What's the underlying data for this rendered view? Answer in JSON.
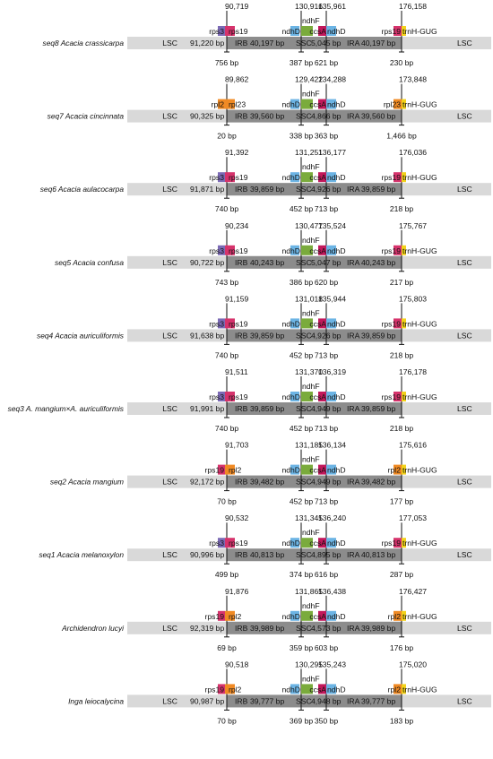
{
  "region_labels": {
    "lsc": "LSC",
    "irb": "IRB",
    "ssc": "SSC",
    "ira": "IRA"
  },
  "colors": {
    "track": "#d9d9d9",
    "ir_block": "#8c8c8c",
    "rps3": "#7b6ab5",
    "rps19": "#d6336c",
    "rpl2": "#f08a24",
    "rpl22": "#f08a24",
    "ndhD": "#6cb4e4",
    "ndhF": "#7aab3c",
    "ccsA": "#c2185b",
    "trnH": "#f2d21b"
  },
  "rows": [
    {
      "species": "seq8 Acacia crassicarpa",
      "jlb": "90,719",
      "jsb": "130,916",
      "jsa": "135,961",
      "jla": "176,158",
      "lsc_len": "91,220 bp",
      "irb_len": "40,197 bp",
      "ssc_len": "5,045 bp",
      "ira_len": "40,197 bp",
      "genes": {
        "g1a": "rps3",
        "g1b": "rps19",
        "g2a": "ndhD",
        "g2b": "ndhF",
        "g3a": "ccsA",
        "g3b": "ndhD",
        "g4a": "rps19",
        "g4b": "trnH-GUG"
      },
      "dist": {
        "d1": "756 bp",
        "d2": "387 bp",
        "d3": "621 bp",
        "d4": "230 bp"
      }
    },
    {
      "species": "seq7 Acacia cincinnata",
      "jlb": "89,862",
      "jsb": "129,422",
      "jsa": "134,288",
      "jla": "173,848",
      "lsc_len": "90,325 bp",
      "irb_len": "39,560 bp",
      "ssc_len": "4,866 bp",
      "ira_len": "39,560 bp",
      "genes": {
        "g1a": "rpl2",
        "g1b": "rpl23",
        "g2a": "ndhD",
        "g2b": "ndhF",
        "g3a": "ccsA",
        "g3b": "ndhD",
        "g4a": "rpl23",
        "g4b": "trnH-GUG"
      },
      "dist": {
        "d1": "20 bp",
        "d2": "338 bp",
        "d3": "363 bp",
        "d4": "1,466 bp"
      }
    },
    {
      "species": "seq6 Acacia aulacocarpa",
      "jlb": "91,392",
      "jsb": "131,251",
      "jsa": "136,177",
      "jla": "176,036",
      "lsc_len": "91,871 bp",
      "irb_len": "39,859 bp",
      "ssc_len": "4,926 bp",
      "ira_len": "39,859 bp",
      "genes": {
        "g1a": "rps3",
        "g1b": "rps19",
        "g2a": "ndhD",
        "g2b": "ndhF",
        "g3a": "ccsA",
        "g3b": "ndhD",
        "g4a": "rps19",
        "g4b": "trnH-GUG"
      },
      "dist": {
        "d1": "740 bp",
        "d2": "452 bp",
        "d3": "713 bp",
        "d4": "218 bp"
      }
    },
    {
      "species": "seq5 Acacia confusa",
      "jlb": "90,234",
      "jsb": "130,477",
      "jsa": "135,524",
      "jla": "175,767",
      "lsc_len": "90,722 bp",
      "irb_len": "40,243 bp",
      "ssc_len": "5,047 bp",
      "ira_len": "40,243 bp",
      "genes": {
        "g1a": "rps3",
        "g1b": "rps19",
        "g2a": "ndhD",
        "g2b": "ndhF",
        "g3a": "ccsA",
        "g3b": "ndhD",
        "g4a": "rps19",
        "g4b": "trnH-GUG"
      },
      "dist": {
        "d1": "743 bp",
        "d2": "386 bp",
        "d3": "620 bp",
        "d4": "217 bp"
      }
    },
    {
      "species": "seq4 Acacia auriculiformis",
      "jlb": "91,159",
      "jsb": "131,018",
      "jsa": "135,944",
      "jla": "175,803",
      "lsc_len": "91,638 bp",
      "irb_len": "39,859 bp",
      "ssc_len": "4,926 bp",
      "ira_len": "39,859 bp",
      "genes": {
        "g1a": "rps3",
        "g1b": "rps19",
        "g2a": "ndhD",
        "g2b": "ndhF",
        "g3a": "ccsA",
        "g3b": "ndhD",
        "g4a": "rps19",
        "g4b": "trnH-GUG"
      },
      "dist": {
        "d1": "740 bp",
        "d2": "452 bp",
        "d3": "713 bp",
        "d4": "218 bp"
      }
    },
    {
      "species": "seq3 A. mangium×A. auriculiformis",
      "jlb": "91,511",
      "jsb": "131,370",
      "jsa": "136,319",
      "jla": "176,178",
      "lsc_len": "91,991 bp",
      "irb_len": "39,859 bp",
      "ssc_len": "4,949 bp",
      "ira_len": "39,859 bp",
      "genes": {
        "g1a": "rps3",
        "g1b": "rps19",
        "g2a": "ndhD",
        "g2b": "ndhF",
        "g3a": "ccsA",
        "g3b": "ndhD",
        "g4a": "rps19",
        "g4b": "trnH-GUG"
      },
      "dist": {
        "d1": "740 bp",
        "d2": "452 bp",
        "d3": "713 bp",
        "d4": "218 bp"
      }
    },
    {
      "species": "seq2 Acacia mangium",
      "jlb": "91,703",
      "jsb": "131,185",
      "jsa": "136,134",
      "jla": "175,616",
      "lsc_len": "92,172 bp",
      "irb_len": "39,482 bp",
      "ssc_len": "4,949 bp",
      "ira_len": "39,482 bp",
      "genes": {
        "g1a": "rps19",
        "g1b": "rpl2",
        "g2a": "ndhD",
        "g2b": "ndhF",
        "g3a": "ccsA",
        "g3b": "ndhD",
        "g4a": "rpl2",
        "g4b": "trnH-GUG"
      },
      "dist": {
        "d1": "70 bp",
        "d2": "452 bp",
        "d3": "713 bp",
        "d4": "177 bp"
      }
    },
    {
      "species": "seq1 Acacia melanoxylon",
      "jlb": "90,532",
      "jsb": "131,345",
      "jsa": "136,240",
      "jla": "177,053",
      "lsc_len": "90,996 bp",
      "irb_len": "40,813 bp",
      "ssc_len": "4,895 bp",
      "ira_len": "40,813 bp",
      "genes": {
        "g1a": "rps3",
        "g1b": "rps19",
        "g2a": "ndhD",
        "g2b": "ndhF",
        "g3a": "ccsA",
        "g3b": "ndhD",
        "g4a": "rps19",
        "g4b": "trnH-GUG"
      },
      "dist": {
        "d1": "499 bp",
        "d2": "374 bp",
        "d3": "616 bp",
        "d4": "287 bp"
      }
    },
    {
      "species": "Archidendron lucyi",
      "jlb": "91,876",
      "jsb": "131,865",
      "jsa": "136,438",
      "jla": "176,427",
      "lsc_len": "92,319 bp",
      "irb_len": "39,989 bp",
      "ssc_len": "4,573 bp",
      "ira_len": "39,989 bp",
      "genes": {
        "g1a": "rps19",
        "g1b": "rpl2",
        "g2a": "ndhD",
        "g2b": "ndhF",
        "g3a": "ccsA",
        "g3b": "ndhD",
        "g4a": "rpl2",
        "g4b": "trnH-GUG"
      },
      "dist": {
        "d1": "69 bp",
        "d2": "359 bp",
        "d3": "603 bp",
        "d4": "176 bp"
      }
    },
    {
      "species": "Inga leiocalycina",
      "jlb": "90,518",
      "jsb": "130,295",
      "jsa": "135,243",
      "jla": "175,020",
      "lsc_len": "90,987 bp",
      "irb_len": "39,777 bp",
      "ssc_len": "4,948 bp",
      "ira_len": "39,777 bp",
      "genes": {
        "g1a": "rps19",
        "g1b": "rpl2",
        "g2a": "ndhD",
        "g2b": "ndhF",
        "g3a": "ccsA",
        "g3b": "ndhD",
        "g4a": "rpl2",
        "g4b": "trnH-GUG"
      },
      "dist": {
        "d1": "70 bp",
        "d2": "369 bp",
        "d3": "350 bp",
        "d4": "183 bp"
      }
    }
  ]
}
